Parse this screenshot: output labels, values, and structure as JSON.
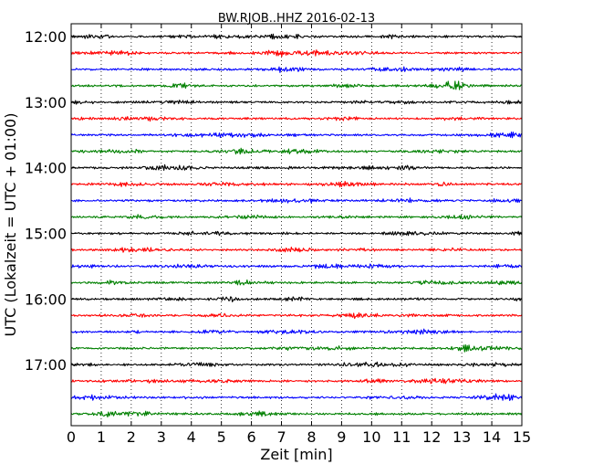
{
  "chart_data": {
    "type": "line",
    "title": "BW.RJOB..HHZ 2016-02-13",
    "xlabel": "Zeit  [min]",
    "ylabel": "UTC (Lokalzeit = UTC + 01:00)",
    "xlim": [
      0,
      15
    ],
    "x_ticks": [
      "0",
      "1",
      "2",
      "3",
      "4",
      "5",
      "6",
      "7",
      "8",
      "9",
      "10",
      "11",
      "12",
      "13",
      "14",
      "15"
    ],
    "y_tick_labels": [
      "12:00",
      "13:00",
      "14:00",
      "15:00",
      "16:00",
      "17:00"
    ],
    "trace_start_times": [
      "12:00",
      "12:15",
      "12:30",
      "12:45",
      "13:00",
      "13:15",
      "13:30",
      "13:45",
      "14:00",
      "14:15",
      "14:30",
      "14:45",
      "15:00",
      "15:15",
      "15:30",
      "15:45",
      "16:00",
      "16:15",
      "16:30",
      "16:45",
      "17:00",
      "17:15",
      "17:30",
      "17:45"
    ],
    "trace_colors": [
      "#000000",
      "#ff0000",
      "#0000ff",
      "#008000"
    ],
    "vertical_grid": "dotted",
    "series_description": "seismic waveform traces, 15 minutes each, color cycle black/red/blue/green"
  }
}
